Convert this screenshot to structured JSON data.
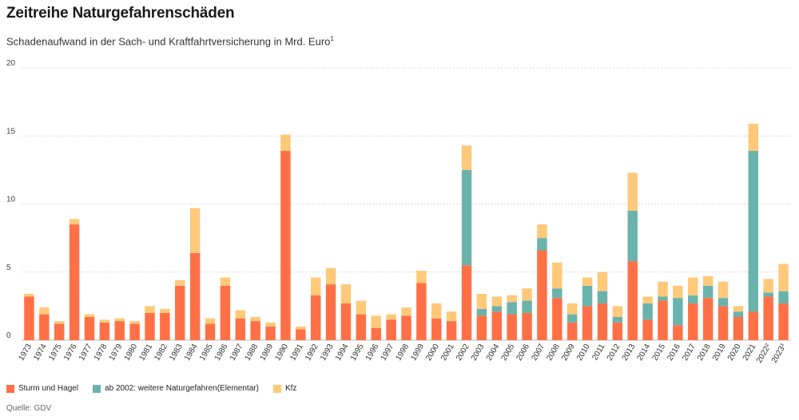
{
  "title": "Zeitreihe Naturgefahrenschäden",
  "subtitle": "Schadenaufwand in der Sach- und Kraftfahrtversicherung in Mrd. Euro",
  "subtitle_sup": "1",
  "source": "Quelle: GDV",
  "colors": {
    "sturm": "#FF7047",
    "elementar": "#6AB3AD",
    "kfz": "#FFC97A",
    "grid": "#bdbdbd"
  },
  "chart_data": {
    "type": "bar",
    "stacked": true,
    "title": "Zeitreihe Naturgefahrenschäden",
    "ylim": [
      0,
      20
    ],
    "yticks": [
      0,
      5,
      10,
      15,
      20
    ],
    "grid": true,
    "legend_position": "bottom-left",
    "categories": [
      "1973",
      "1974",
      "1975",
      "1976",
      "1977",
      "1978",
      "1979",
      "1980",
      "1981",
      "1982",
      "1983",
      "1984",
      "1985",
      "1986",
      "1987",
      "1988",
      "1989",
      "1990",
      "1991",
      "1992",
      "1993",
      "1994",
      "1995",
      "1996",
      "1997",
      "1998",
      "1999",
      "2000",
      "2001",
      "2002",
      "2003",
      "2004",
      "2005",
      "2006",
      "2007",
      "2008",
      "2009",
      "2010",
      "2011",
      "2012",
      "2013",
      "2014",
      "2015",
      "2016",
      "2017",
      "2018",
      "2019",
      "2020",
      "2021",
      "2022²",
      "2023³"
    ],
    "series": [
      {
        "name": "Sturm und Hagel",
        "values": [
          3.2,
          1.9,
          1.2,
          8.5,
          1.7,
          1.3,
          1.4,
          1.2,
          2.0,
          2.0,
          4.0,
          6.4,
          1.2,
          4.0,
          1.6,
          1.4,
          1.0,
          13.9,
          0.8,
          3.3,
          4.1,
          2.7,
          1.9,
          0.9,
          1.5,
          1.8,
          4.2,
          1.6,
          1.4,
          5.5,
          1.8,
          2.1,
          1.9,
          2.0,
          6.6,
          3.1,
          1.3,
          2.5,
          2.7,
          1.3,
          5.8,
          1.5,
          2.9,
          1.1,
          2.7,
          3.1,
          2.5,
          1.7,
          2.1,
          3.2,
          2.7
        ]
      },
      {
        "name": "ab 2002: weitere Naturgefahren(Elementar)",
        "values": [
          0,
          0,
          0,
          0,
          0,
          0,
          0,
          0,
          0,
          0,
          0,
          0,
          0,
          0,
          0,
          0,
          0,
          0,
          0,
          0,
          0,
          0,
          0,
          0,
          0,
          0,
          0,
          0,
          0,
          7.0,
          0.5,
          0.4,
          0.9,
          0.9,
          0.9,
          0.7,
          0.6,
          1.5,
          0.9,
          0.4,
          3.7,
          1.2,
          0.3,
          2.0,
          0.6,
          0.9,
          0.6,
          0.4,
          11.8,
          0.3,
          0.9
        ]
      },
      {
        "name": "Kfz",
        "values": [
          0.2,
          0.5,
          0.2,
          0.4,
          0.2,
          0.2,
          0.2,
          0.2,
          0.5,
          0.3,
          0.4,
          3.3,
          0.4,
          0.6,
          0.6,
          0.3,
          0.3,
          1.2,
          0.2,
          1.3,
          1.2,
          1.4,
          1.0,
          0.9,
          0.4,
          0.6,
          0.9,
          1.1,
          0.7,
          1.8,
          1.1,
          0.7,
          0.5,
          0.9,
          1.0,
          1.9,
          0.8,
          0.6,
          1.4,
          0.8,
          2.8,
          0.5,
          1.1,
          0.9,
          1.3,
          0.7,
          1.2,
          0.4,
          2.0,
          1.0,
          2.0
        ]
      }
    ]
  }
}
